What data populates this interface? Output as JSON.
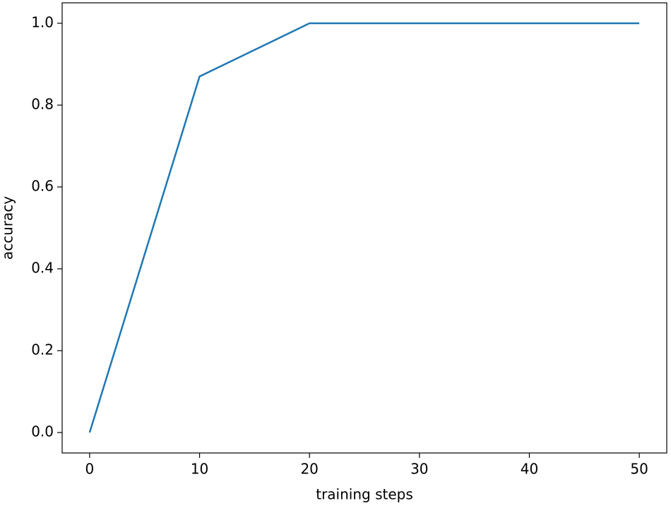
{
  "chart_data": {
    "type": "line",
    "x_label": "training steps",
    "y_label": "accuracy",
    "x": [
      0,
      10,
      20,
      30,
      40,
      50
    ],
    "values": [
      0.0,
      0.87,
      1.0,
      1.0,
      1.0,
      1.0
    ],
    "color": "#1f77b4",
    "xlim": [
      -2.5,
      52.5
    ],
    "xticks": [
      0,
      10,
      20,
      30,
      40,
      50
    ],
    "ylim": [
      -0.05,
      1.05
    ],
    "yticks": [
      {
        "value": 0,
        "label": "0.0"
      },
      0.2,
      0.4,
      0.6,
      0.8,
      {
        "value": 1,
        "label": "1.0"
      }
    ],
    "grid": false
  }
}
